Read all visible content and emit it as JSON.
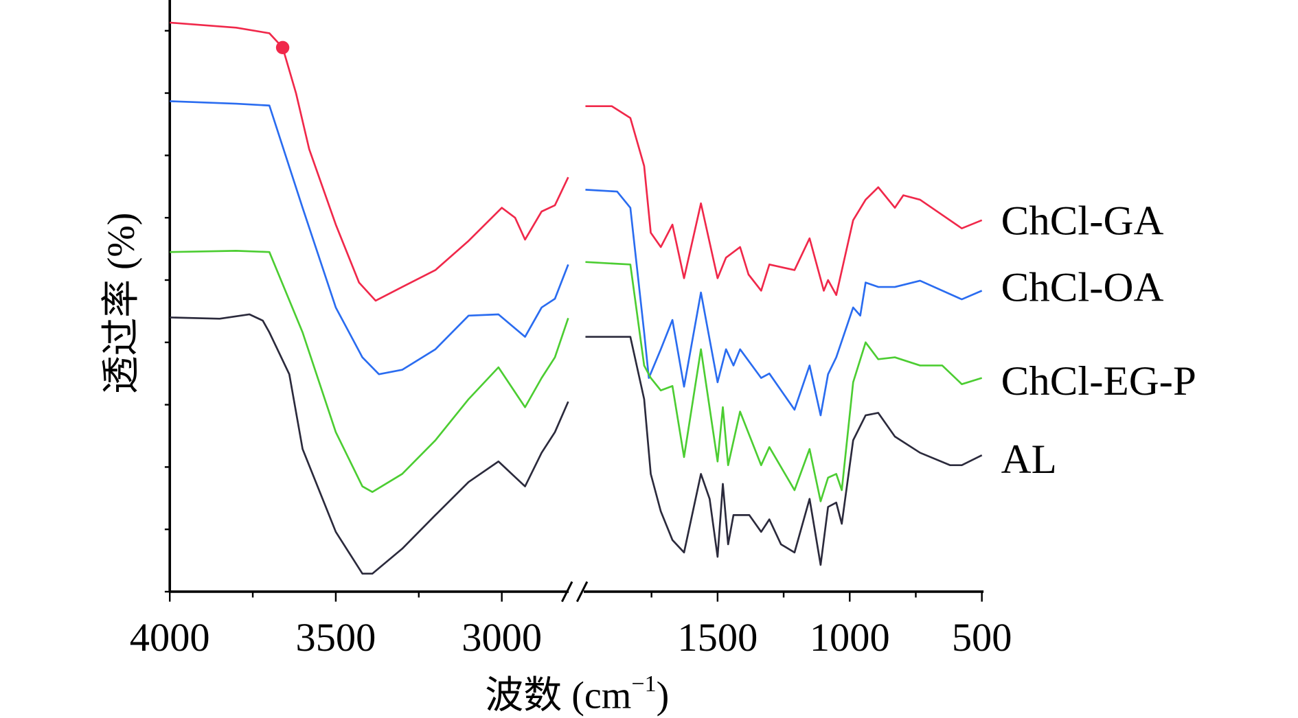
{
  "chart_data": {
    "type": "line",
    "title": "",
    "xlabel": "波数 (cm",
    "xlabel_sup": "−1",
    "xlabel_close": ")",
    "ylabel": "透过率 (%)",
    "x_axis": {
      "broken": true,
      "segments": [
        [
          4000,
          2800
        ],
        [
          2000,
          500
        ]
      ],
      "tick_labels": [
        "4000",
        "3500",
        "3000",
        "1500",
        "1000",
        "500"
      ],
      "major_ticks": [
        4000,
        3500,
        3000,
        1500,
        1000,
        500
      ],
      "minor_ticks": [
        3750,
        3250,
        1750,
        1250,
        750
      ]
    },
    "y_axis": {
      "ylim": [
        0,
        9.5
      ],
      "ticks": [
        0,
        1,
        2,
        3,
        4,
        5,
        6,
        7,
        8,
        9
      ],
      "tick_labels_shown": false
    },
    "grid": false,
    "legend": "inline-right",
    "series": [
      {
        "name": "ChCl-GA",
        "color": "#f0284a",
        "marker": {
          "x": 3660,
          "y": 8.73
        },
        "points": [
          [
            4000,
            9.13
          ],
          [
            3800,
            9.05
          ],
          [
            3700,
            8.96
          ],
          [
            3660,
            8.73
          ],
          [
            3620,
            8.0
          ],
          [
            3580,
            7.1
          ],
          [
            3500,
            5.89
          ],
          [
            3430,
            4.96
          ],
          [
            3380,
            4.67
          ],
          [
            3300,
            4.89
          ],
          [
            3200,
            5.16
          ],
          [
            3100,
            5.63
          ],
          [
            3000,
            6.16
          ],
          [
            2960,
            6.0
          ],
          [
            2930,
            5.65
          ],
          [
            2880,
            6.1
          ],
          [
            2840,
            6.2
          ],
          [
            2800,
            6.65
          ],
          null,
          [
            2000,
            7.79
          ],
          [
            1900,
            7.79
          ],
          [
            1830,
            7.6
          ],
          [
            1778,
            6.83
          ],
          [
            1753,
            5.76
          ],
          [
            1715,
            5.53
          ],
          [
            1671,
            5.89
          ],
          [
            1627,
            5.03
          ],
          [
            1563,
            6.23
          ],
          [
            1500,
            5.03
          ],
          [
            1468,
            5.36
          ],
          [
            1415,
            5.53
          ],
          [
            1383,
            5.09
          ],
          [
            1335,
            4.83
          ],
          [
            1304,
            5.25
          ],
          [
            1209,
            5.16
          ],
          [
            1152,
            5.67
          ],
          [
            1098,
            4.83
          ],
          [
            1082,
            5.0
          ],
          [
            1051,
            4.76
          ],
          [
            987,
            5.96
          ],
          [
            940,
            6.29
          ],
          [
            892,
            6.49
          ],
          [
            829,
            6.16
          ],
          [
            797,
            6.36
          ],
          [
            734,
            6.29
          ],
          [
            576,
            5.83
          ],
          [
            500,
            5.96
          ]
        ]
      },
      {
        "name": "ChCl-OA",
        "color": "#2a6cf0",
        "points": [
          [
            4000,
            7.87
          ],
          [
            3800,
            7.83
          ],
          [
            3700,
            7.8
          ],
          [
            3600,
            6.16
          ],
          [
            3500,
            4.56
          ],
          [
            3420,
            3.76
          ],
          [
            3370,
            3.49
          ],
          [
            3300,
            3.56
          ],
          [
            3200,
            3.89
          ],
          [
            3100,
            4.43
          ],
          [
            3010,
            4.45
          ],
          [
            2930,
            4.09
          ],
          [
            2880,
            4.56
          ],
          [
            2840,
            4.7
          ],
          [
            2800,
            5.25
          ],
          null,
          [
            2000,
            6.45
          ],
          [
            1880,
            6.42
          ],
          [
            1830,
            6.16
          ],
          [
            1778,
            4.16
          ],
          [
            1760,
            3.43
          ],
          [
            1715,
            3.89
          ],
          [
            1671,
            4.36
          ],
          [
            1627,
            3.29
          ],
          [
            1563,
            4.8
          ],
          [
            1500,
            3.36
          ],
          [
            1468,
            3.89
          ],
          [
            1440,
            3.63
          ],
          [
            1415,
            3.89
          ],
          [
            1335,
            3.43
          ],
          [
            1304,
            3.5
          ],
          [
            1209,
            2.92
          ],
          [
            1152,
            3.63
          ],
          [
            1110,
            2.83
          ],
          [
            1082,
            3.49
          ],
          [
            1051,
            3.76
          ],
          [
            987,
            4.56
          ],
          [
            960,
            4.43
          ],
          [
            940,
            4.96
          ],
          [
            892,
            4.89
          ],
          [
            829,
            4.89
          ],
          [
            734,
            4.99
          ],
          [
            576,
            4.69
          ],
          [
            500,
            4.83
          ]
        ]
      },
      {
        "name": "ChCl-EG-P",
        "color": "#4ccd32",
        "points": [
          [
            4000,
            5.45
          ],
          [
            3800,
            5.47
          ],
          [
            3700,
            5.45
          ],
          [
            3600,
            4.16
          ],
          [
            3500,
            2.56
          ],
          [
            3420,
            1.69
          ],
          [
            3390,
            1.6
          ],
          [
            3300,
            1.89
          ],
          [
            3200,
            2.43
          ],
          [
            3100,
            3.09
          ],
          [
            3010,
            3.6
          ],
          [
            2930,
            2.96
          ],
          [
            2880,
            3.43
          ],
          [
            2840,
            3.76
          ],
          [
            2800,
            4.39
          ],
          null,
          [
            2000,
            5.29
          ],
          [
            1830,
            5.25
          ],
          [
            1778,
            3.63
          ],
          [
            1753,
            3.43
          ],
          [
            1715,
            3.23
          ],
          [
            1671,
            3.3
          ],
          [
            1627,
            2.16
          ],
          [
            1563,
            3.89
          ],
          [
            1500,
            2.09
          ],
          [
            1480,
            2.96
          ],
          [
            1460,
            2.03
          ],
          [
            1415,
            2.89
          ],
          [
            1335,
            2.03
          ],
          [
            1304,
            2.32
          ],
          [
            1209,
            1.63
          ],
          [
            1152,
            2.29
          ],
          [
            1110,
            1.45
          ],
          [
            1082,
            1.83
          ],
          [
            1051,
            1.89
          ],
          [
            1030,
            1.63
          ],
          [
            987,
            3.36
          ],
          [
            940,
            4.0
          ],
          [
            892,
            3.73
          ],
          [
            829,
            3.76
          ],
          [
            734,
            3.63
          ],
          [
            650,
            3.63
          ],
          [
            576,
            3.33
          ],
          [
            500,
            3.43
          ]
        ]
      },
      {
        "name": "AL",
        "color": "#2b2a3c",
        "points": [
          [
            4000,
            4.4
          ],
          [
            3850,
            4.38
          ],
          [
            3760,
            4.45
          ],
          [
            3720,
            4.35
          ],
          [
            3700,
            4.16
          ],
          [
            3640,
            3.49
          ],
          [
            3600,
            2.29
          ],
          [
            3500,
            0.96
          ],
          [
            3420,
            0.29
          ],
          [
            3390,
            0.29
          ],
          [
            3300,
            0.69
          ],
          [
            3200,
            1.23
          ],
          [
            3100,
            1.76
          ],
          [
            3010,
            2.09
          ],
          [
            2930,
            1.69
          ],
          [
            2880,
            2.23
          ],
          [
            2840,
            2.56
          ],
          [
            2800,
            3.05
          ],
          null,
          [
            2000,
            4.09
          ],
          [
            1830,
            4.09
          ],
          [
            1778,
            3.09
          ],
          [
            1753,
            1.89
          ],
          [
            1715,
            1.29
          ],
          [
            1671,
            0.83
          ],
          [
            1627,
            0.63
          ],
          [
            1563,
            1.89
          ],
          [
            1530,
            1.49
          ],
          [
            1500,
            0.56
          ],
          [
            1480,
            1.73
          ],
          [
            1460,
            0.76
          ],
          [
            1440,
            1.23
          ],
          [
            1380,
            1.23
          ],
          [
            1335,
            0.96
          ],
          [
            1304,
            1.16
          ],
          [
            1260,
            0.76
          ],
          [
            1209,
            0.63
          ],
          [
            1152,
            1.49
          ],
          [
            1110,
            0.43
          ],
          [
            1082,
            1.36
          ],
          [
            1051,
            1.43
          ],
          [
            1030,
            1.09
          ],
          [
            987,
            2.43
          ],
          [
            940,
            2.83
          ],
          [
            892,
            2.87
          ],
          [
            829,
            2.49
          ],
          [
            734,
            2.23
          ],
          [
            620,
            2.03
          ],
          [
            576,
            2.03
          ],
          [
            500,
            2.19
          ]
        ]
      }
    ]
  }
}
